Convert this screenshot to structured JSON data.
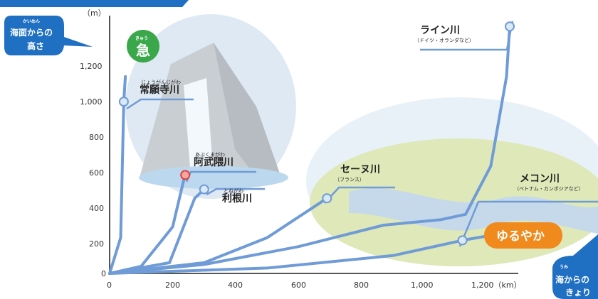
{
  "header_text": "",
  "y_axis": {
    "unit": "（m）",
    "ticks": [
      "1,200",
      "1,000",
      "800",
      "600",
      "400",
      "200",
      "0"
    ]
  },
  "x_axis": {
    "ticks": [
      "0",
      "200",
      "400",
      "600",
      "800",
      "1,000",
      "1,200（km）"
    ]
  },
  "callouts": {
    "height_bubble": {
      "ruby": "かいめん",
      "line1": "海面からの",
      "line2": "高さ"
    },
    "distance_bubble": {
      "ruby": "うみ",
      "line1": "海からの",
      "line2": "きょり"
    },
    "steep_badge": {
      "ruby": "きゅう",
      "label": "急"
    },
    "gentle_badge": {
      "label": "ゆるやか"
    }
  },
  "colors": {
    "river_line": "#6f9bd6",
    "highlight": "#e0403a",
    "steep_green": "#3aa84a",
    "gentle_orange": "#f08a1c",
    "bubble_blue": "#1f6fc2"
  },
  "chart_data": {
    "type": "line",
    "x_unit": "km",
    "y_unit": "m",
    "xlim": [
      0,
      1270
    ],
    "ylim": [
      0,
      1300
    ],
    "series": [
      {
        "name": "常願寺川",
        "ruby": "じょうがんじがわ",
        "sub": "",
        "highlight": false,
        "points": [
          [
            0,
            0
          ],
          [
            35,
            200
          ],
          [
            45,
            960
          ],
          [
            50,
            1100
          ]
        ],
        "marker": [
          45,
          960
        ]
      },
      {
        "name": "阿武隈川",
        "ruby": "あぶくまがわ",
        "sub": "",
        "highlight": true,
        "points": [
          [
            0,
            0
          ],
          [
            100,
            40
          ],
          [
            200,
            260
          ],
          [
            235,
            520
          ],
          [
            240,
            550
          ]
        ],
        "marker": [
          240,
          550
        ]
      },
      {
        "name": "利根川",
        "ruby": "とねがわ",
        "sub": "",
        "highlight": false,
        "points": [
          [
            0,
            0
          ],
          [
            190,
            60
          ],
          [
            270,
            420
          ],
          [
            300,
            470
          ]
        ],
        "marker": [
          300,
          470
        ]
      },
      {
        "name": "セーヌ川",
        "ruby": "",
        "sub": "（フランス）",
        "highlight": false,
        "points": [
          [
            0,
            0
          ],
          [
            300,
            60
          ],
          [
            500,
            200
          ],
          [
            690,
            420
          ],
          [
            700,
            430
          ]
        ],
        "marker": [
          690,
          420
        ]
      },
      {
        "name": "ライン川",
        "ruby": "",
        "sub": "（ドイツ・オランダなど）",
        "highlight": false,
        "points": [
          [
            0,
            0
          ],
          [
            300,
            50
          ],
          [
            600,
            150
          ],
          [
            870,
            270
          ],
          [
            1050,
            300
          ],
          [
            1130,
            330
          ],
          [
            1210,
            600
          ],
          [
            1260,
            1100
          ],
          [
            1270,
            1380
          ]
        ],
        "marker": [
          1270,
          1380
        ]
      },
      {
        "name": "メコン川",
        "ruby": "",
        "sub": "（ベトナム・カンボジアなど）",
        "highlight": false,
        "points": [
          [
            0,
            0
          ],
          [
            500,
            30
          ],
          [
            900,
            100
          ],
          [
            1120,
            185
          ],
          [
            1200,
            210
          ]
        ],
        "marker": [
          1120,
          185
        ]
      }
    ]
  }
}
